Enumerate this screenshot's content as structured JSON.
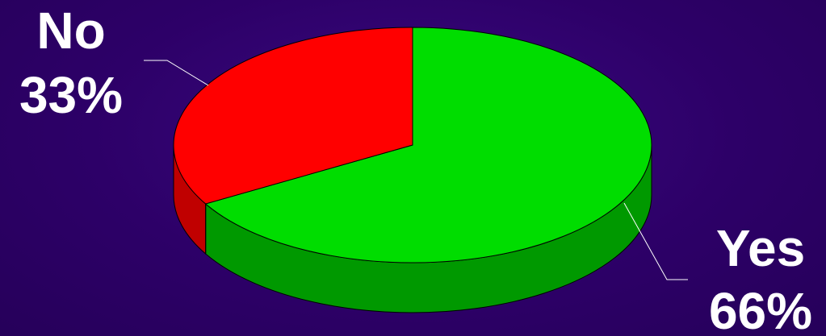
{
  "chart_data": {
    "type": "pie",
    "style": "3d",
    "slices": [
      {
        "category": "Yes",
        "value": 66,
        "value_label": "66%",
        "color": "#00dd00",
        "side_color": "#009900"
      },
      {
        "category": "No",
        "value": 33,
        "value_label": "33%",
        "color": "#ff0000",
        "side_color": "#c00000"
      }
    ],
    "title": "",
    "legend": "none",
    "background_color": "#2d0068",
    "label_color": "#ffffff",
    "leader_line_color": "#ffffff"
  }
}
